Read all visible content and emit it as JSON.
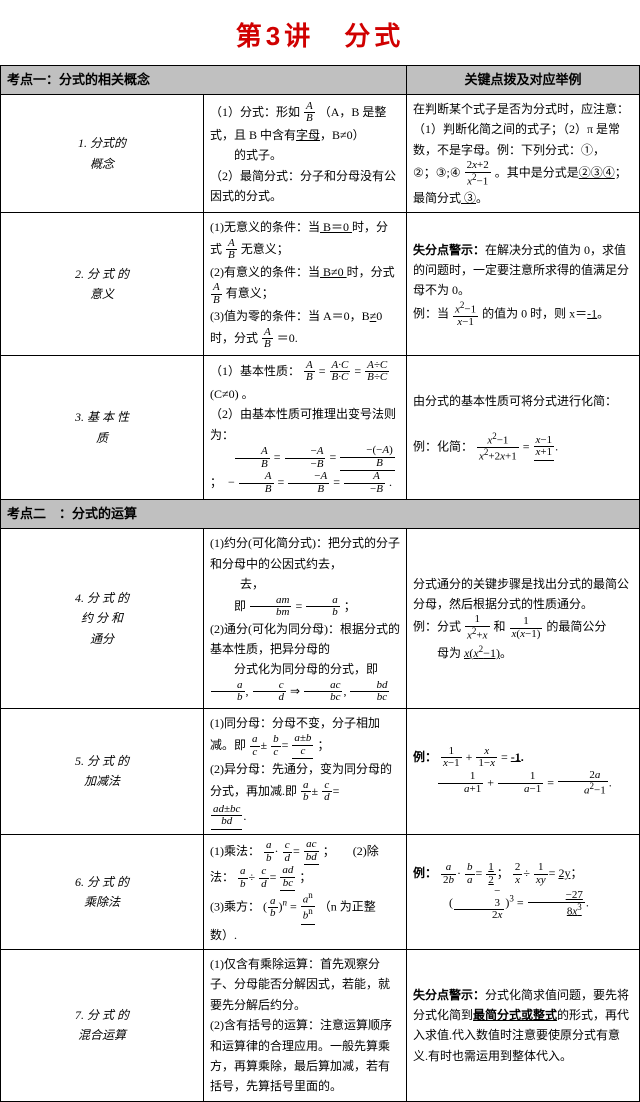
{
  "title": "第3讲　分式",
  "section1": "考点一：分式的相关概念",
  "col3header": "关键点拨及对应举例",
  "section2": "考点二　：分式的运算",
  "r1_label_a": "1.",
  "r1_label_b": "分式的",
  "r1_label_c": "概念",
  "r2_label_a": "2. 分 式 的",
  "r2_label_b": "意义",
  "r3_label_a": "3. 基 本 性",
  "r3_label_b": "质",
  "r4_label_a": "4. 分 式 的",
  "r4_label_b": "约 分 和",
  "r4_label_c": "通分",
  "r5_label_a": "5. 分 式 的",
  "r5_label_b": "加减法",
  "r6_label_a": "6. 分 式 的",
  "r6_label_b": "乘除法",
  "r7_label_a": "7. 分 式 的",
  "r7_label_b": "混合运算",
  "texts": {
    "r1c2_1a": "（1）分式：形如",
    "r1c2_1b": "（A，B 是整式，且 B 中含有",
    "r1c2_1c": "字母",
    "r1c2_1d": "，B≠0）",
    "r1c2_2": "的式子。",
    "r1c2_3": "（2）最简分式：分子和分母没有公因式的分式。",
    "r1c3_1": "在判断某个式子是否为分式时，应注意：（1）判断化简之间的式子；（2）π 是常数，不是字母。例：下列分式：①，",
    "r1c3_2a": "②；③;④",
    "r1c3_2b": "。其中是分式是",
    "r1c3_2c": "②③④",
    "r1c3_2d": "；",
    "r1c3_3a": "最简分式",
    "r1c3_3b": " ③",
    "r1c3_3c": "。",
    "r2c2_1a": "(1)无意义的条件：当",
    "r2c2_1b": " B＝0 ",
    "r2c2_1c": "时，分式",
    "r2c2_1d": "无意义；",
    "r2c2_2a": "(2)有意义的条件：当",
    "r2c2_2b": " B≠0 ",
    "r2c2_2c": "时，分式",
    "r2c2_2d": "有意义；",
    "r2c2_3a": "(3)值为零的条件：当 A＝0，B",
    "r2c2_3b": "≠",
    "r2c2_3c": "0 时，分式",
    "r2c2_3d": "＝0.",
    "r2c3_1": "失分点警示：",
    "r2c3_1b": "在解决分式的值为 0，求值的问题时，一定要注意所求得的值满足分母不为 0。",
    "r2c3_2a": "例：当",
    "r2c3_2b": "的值为 0 时，则 x＝",
    "r2c3_2c": "-1",
    "r2c3_2d": "。",
    "r3c2_1a": "（1）基本性质：",
    "r3c2_1b": "(C≠0) 。",
    "r3c2_2": "（2）由基本性质可推理出变号法则为：",
    "r3c3_1": "由分式的基本性质可将分式进行化简：",
    "r3c3_2a": "例：化简：",
    "r4c2_1": "(1)约分(可化简分式)：把分式的分子和分母中的公因式约去，",
    "r4c2_2a": "即",
    "r4c2_2b": "；",
    "r4c2_3": "(2)通分(可化为同分母)：根据分式的基本性质，把异分母的",
    "r4c2_4a": "分式化为同分母的分式，即",
    "r4c3_1": "分式通分的关键步骤是找出分式的最简公分母，然后根据分式的性质通分。",
    "r4c3_2a": "例：分式",
    "r4c3_2b": "和",
    "r4c3_2c": "的最简公分",
    "r4c3_3a": "母为",
    "r4c3_3b": "。",
    "r5c2_1a": "(1)同分母：分母不变，分子相加减。即",
    "r5c2_1b": "；",
    "r5c2_2a": "(2)异分母：先通分，变为同分母的分式，再加减.即",
    "r5c3_a": "例：",
    "r5c3_b": "-1",
    "r5c3_c": ".",
    "r6c2_1a": "(1)乘法：",
    "r6c2_1b": "；　　(2)除法：",
    "r6c2_1c": "；",
    "r6c2_2a": "(3)乘方：",
    "r6c2_2b": "（n 为正整数）.",
    "r6c3_a": "例：",
    "r6c3_b": "2y",
    "r7c2_1": "(1)仅含有乘除运算：首先观察分子、分母能否分解因式，若能，就要先分解后约分。",
    "r7c2_2": "(2)含有括号的运算：注意运算顺序和运算律的合理应用。一般先算乘方，再算乘除，最后算加减，若有括号，先算括号里面的。",
    "r7c3_1a": "失分点警示：",
    "r7c3_1b": "分式化简求值问题，要先将分式化简到",
    "r7c3_1c": "最简分式或整式",
    "r7c3_1d": "的形式，再代入求值.代入数值时注意要使原分式有意义.有时也需运用到整体代入。"
  }
}
